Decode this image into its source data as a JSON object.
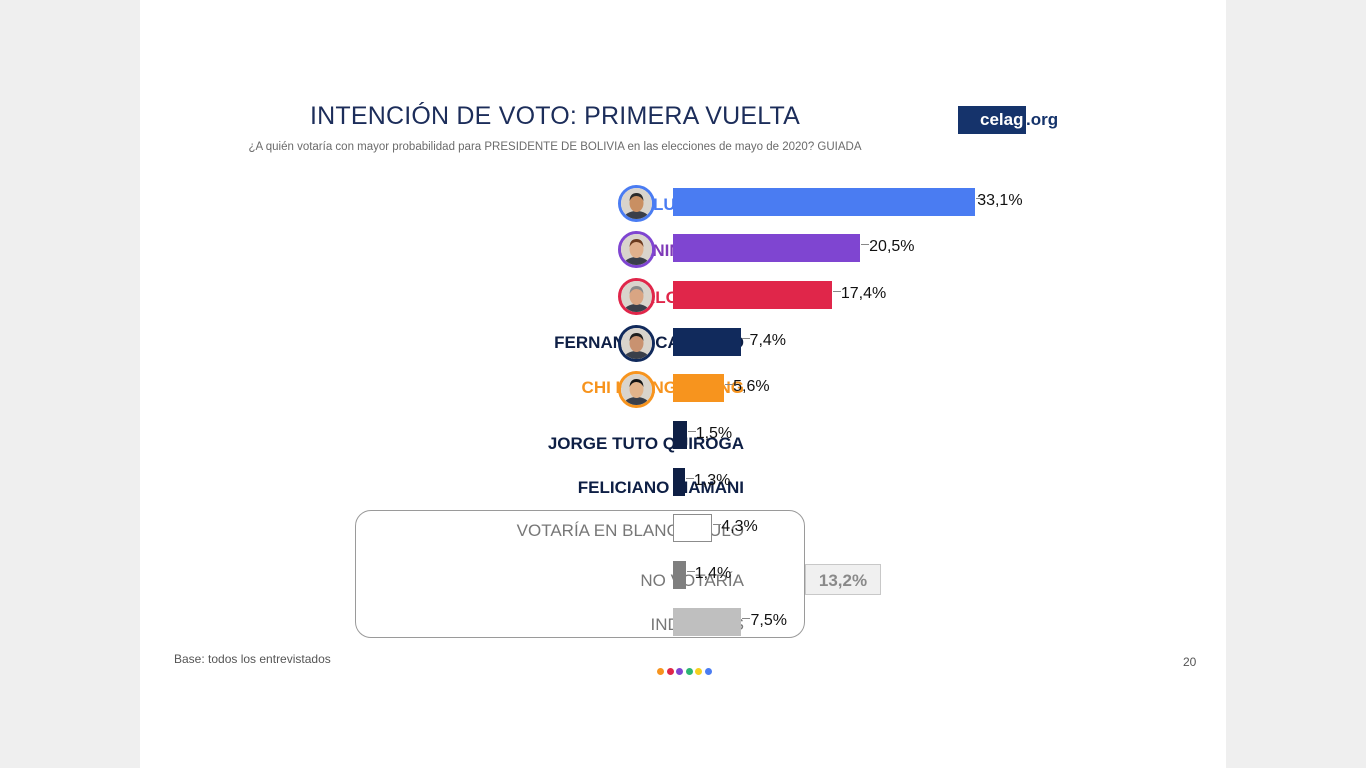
{
  "header": {
    "title": "INTENCIÓN DE VOTO: PRIMERA VUELTA",
    "subtitle": "¿A quién votaría con mayor probabilidad para PRESIDENTE DE BOLIVIA en las elecciones de mayo de 2020? GUIADA",
    "logo_box_text": "celag",
    "logo_suffix": ".org"
  },
  "chart_data": {
    "type": "bar",
    "orientation": "horizontal",
    "title": "INTENCIÓN DE VOTO: PRIMERA VUELTA",
    "categories": [
      "LUIS ARCE",
      "JEANINE ÁÑEZ",
      "CARLOS MESA",
      "FERNANDO CAMACHO",
      "CHI HYUNG CHUNG",
      "JORGE TUTO QUIROGA",
      "FELICIANO MAMANI",
      "VOTARÍA EN BLANCO/NULO",
      "NO VOTARÍA",
      "INDECISOS"
    ],
    "values": [
      33.1,
      20.5,
      17.4,
      7.4,
      5.6,
      1.5,
      1.3,
      4.3,
      1.4,
      7.5
    ],
    "value_labels": [
      "33,1%",
      "20,5%",
      "17,4%",
      "7,4%",
      "5,6%",
      "1,5%",
      "1,3%",
      "4,3%",
      "1,4%",
      "7,5%"
    ],
    "colors": [
      "#4a7cf2",
      "#7f45d1",
      "#e0264a",
      "#112a5c",
      "#f7941e",
      "#0e1f45",
      "#0e1f45",
      "#ffffff",
      "#7f7f7f",
      "#bfbfbf"
    ],
    "label_colors": [
      "#4a7cf2",
      "#7f3ab8",
      "#e0264a",
      "#0e1f45",
      "#f7941e",
      "#0e1f45",
      "#0e1f45",
      "#777777",
      "#777777",
      "#777777"
    ],
    "has_photo": [
      true,
      true,
      true,
      true,
      true,
      false,
      false,
      false,
      false,
      false
    ],
    "group_total": {
      "members": [
        "VOTARÍA EN BLANCO/NULO",
        "NO VOTARÍA",
        "INDECISOS"
      ],
      "label": "13,2%",
      "value": 13.2
    },
    "xlim": [
      0,
      33.1
    ],
    "grid": false,
    "legend": "none"
  },
  "footer": {
    "base": "Base: todos los entrevistados",
    "page_number": "20",
    "dot_colors": [
      "#f7941e",
      "#e0264a",
      "#7f45d1",
      "#2bb673",
      "#f5d020",
      "#4a7cf2"
    ]
  }
}
